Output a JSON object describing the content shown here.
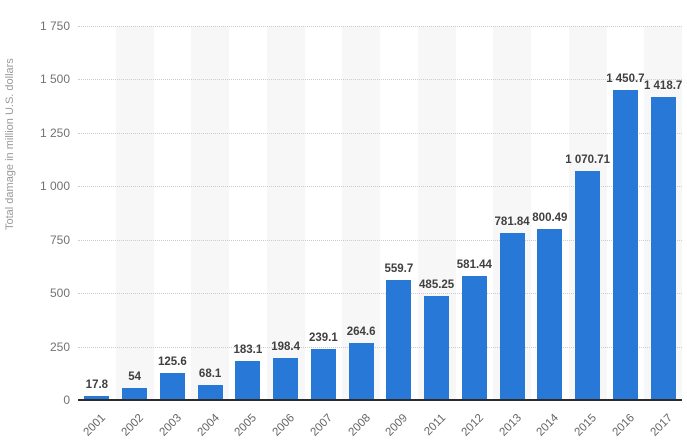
{
  "chart_data": {
    "type": "bar",
    "title": "",
    "xlabel": "",
    "ylabel": "Total damage in million U.S. dollars",
    "categories": [
      "2001",
      "2002",
      "2003",
      "2004",
      "2005",
      "2006",
      "2007",
      "2008",
      "2009",
      "2011",
      "2012",
      "2013",
      "2014",
      "2015",
      "2016",
      "2017"
    ],
    "values": [
      17.8,
      54,
      125.6,
      68.1,
      183.1,
      198.4,
      239.1,
      264.6,
      559.7,
      485.25,
      581.44,
      781.84,
      800.49,
      1070.71,
      1450.7,
      1418.7
    ],
    "value_labels": [
      "17.8",
      "54",
      "125.6",
      "68.1",
      "183.1",
      "198.4",
      "239.1",
      "264.6",
      "559.7",
      "485.25",
      "581.44",
      "781.84",
      "800.49",
      "1 070.71",
      "1 450.7",
      "1 418.7"
    ],
    "y_ticks": [
      0,
      250,
      500,
      750,
      1000,
      1250,
      1500,
      1750
    ],
    "y_tick_labels": [
      "0",
      "250",
      "500",
      "750",
      "1 000",
      "1 250",
      "1 500",
      "1 750"
    ],
    "ylim": [
      0,
      1750
    ],
    "grid": "horizontal-dotted",
    "legend": "none",
    "colors": {
      "bar": "#2878d7",
      "band": "#f7f7f7",
      "gridline": "#cccccc",
      "axis_line": "#2b2b2b",
      "value_label": "#404040",
      "tick_label": "#737373",
      "x_tick_label": "#666666",
      "axis_title": "#9a9a9a",
      "background": "#ffffff"
    }
  }
}
